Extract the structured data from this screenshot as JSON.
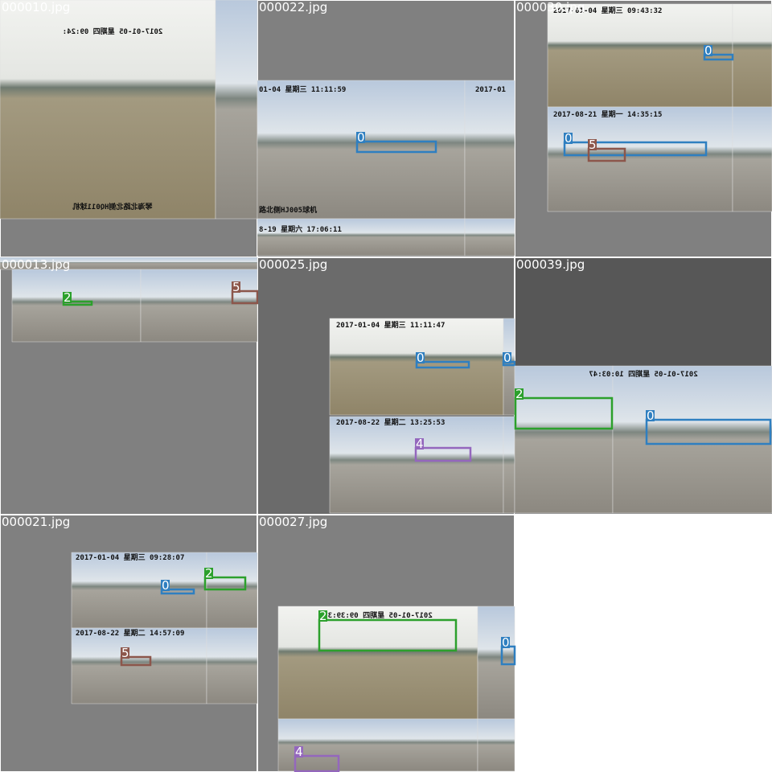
{
  "tiles": [
    {
      "file": "000010.jpg",
      "boxes": [],
      "captions": [
        "2017-01-05 星期四 09:24:",
        "琴海北路北侧HQ011球机"
      ]
    },
    {
      "file": "000022.jpg",
      "boxes": [
        {
          "label": "0"
        }
      ],
      "captions": [
        "01-04 星期三 11:11:59",
        "路北侧HJ005球机",
        "8-19 星期六 17:06:11",
        "2017-01"
      ]
    },
    {
      "file": "000030.jpg",
      "boxes": [
        {
          "label": "0"
        },
        {
          "label": "0"
        },
        {
          "label": "5"
        }
      ],
      "captions": [
        "2017-01-04 星期三 09:43:32",
        "2017-08-21 星期一 14:35:15"
      ]
    },
    {
      "file": "000013.jpg",
      "boxes": [
        {
          "label": "2"
        },
        {
          "label": "5"
        }
      ],
      "captions": []
    },
    {
      "file": "000025.jpg",
      "boxes": [
        {
          "label": "0"
        },
        {
          "label": "0"
        },
        {
          "label": "4"
        }
      ],
      "captions": [
        "2017-01-04 星期三 11:11:47",
        "2017-08-22 星期二 13:25:53"
      ]
    },
    {
      "file": "000039.jpg",
      "boxes": [
        {
          "label": "2"
        },
        {
          "label": "0"
        }
      ],
      "captions": [
        "2017-01-05 星期四 10:03:47"
      ]
    },
    {
      "file": "000021.jpg",
      "boxes": [
        {
          "label": "0"
        },
        {
          "label": "2"
        },
        {
          "label": "5"
        }
      ],
      "captions": [
        "2017-01-04 星期三 09:28:07",
        "2017-08-22 星期二 14:57:09"
      ]
    },
    {
      "file": "000027.jpg",
      "boxes": [
        {
          "label": "2"
        },
        {
          "label": "0"
        },
        {
          "label": "4"
        }
      ],
      "captions": [
        "2017-01-05 星期四 09:39:37"
      ]
    }
  ]
}
